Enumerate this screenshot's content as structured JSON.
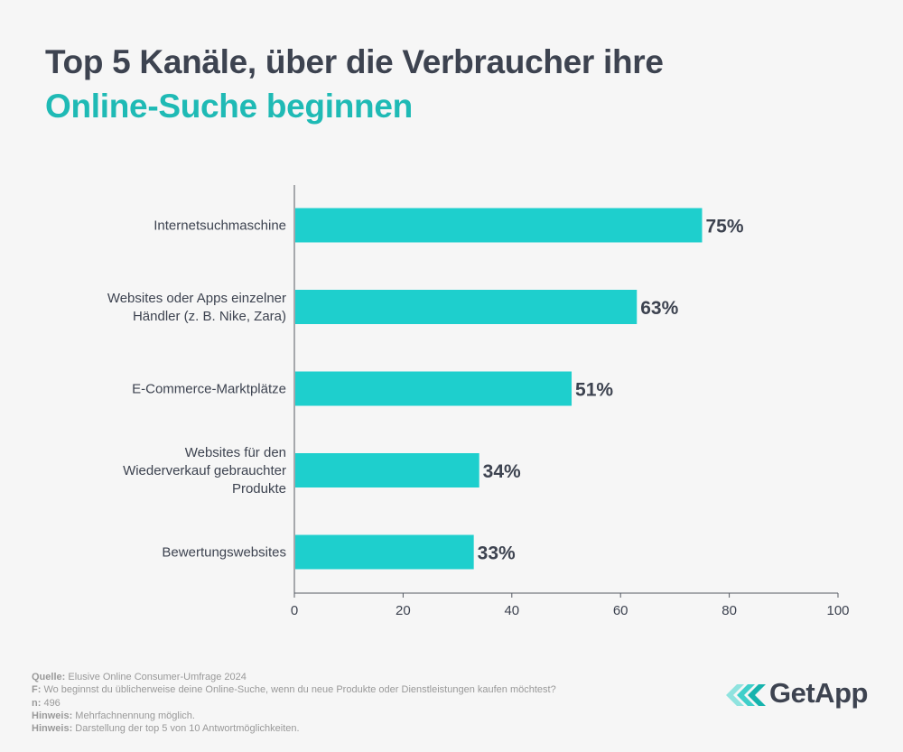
{
  "title": {
    "line1": "Top 5 Kanäle, über die Verbraucher ihre",
    "line2": "Online-Suche beginnen"
  },
  "colors": {
    "accent": "#1ecfcd",
    "title_dark": "#3d4350",
    "title_teal": "#1fbab5"
  },
  "chart_data": {
    "type": "bar",
    "orientation": "horizontal",
    "categories": [
      [
        "Internetsuchmaschine"
      ],
      [
        "Websites oder Apps einzelner",
        "Händler (z. B. Nike, Zara)"
      ],
      [
        "E-Commerce-Marktplätze"
      ],
      [
        "Websites für den",
        "Wiederverkauf gebrauchter",
        "Produkte"
      ],
      [
        "Bewertungswebsites"
      ]
    ],
    "values": [
      75,
      63,
      51,
      34,
      33
    ],
    "value_labels": [
      "75%",
      "63%",
      "51%",
      "34%",
      "33%"
    ],
    "xlim": [
      0,
      100
    ],
    "xticks": [
      0,
      20,
      40,
      60,
      80,
      100
    ],
    "grid": false,
    "color": "#1ecfcd"
  },
  "footer": [
    {
      "label": "Quelle:",
      "text": " Elusive Online Consumer-Umfrage 2024"
    },
    {
      "label": "F:",
      "text": " Wo beginnst du üblicherweise deine Online-Suche, wenn du neue Produkte oder Dienstleistungen kaufen möchtest?"
    },
    {
      "label": "n:",
      "text": " 496"
    },
    {
      "label": "Hinweis:",
      "text": " Mehrfachnennung möglich."
    },
    {
      "label": "Hinweis:",
      "text": " Darstellung der top 5 von 10 Antwortmöglichkeiten."
    }
  ],
  "logo": {
    "text": "GetApp",
    "icon": "getapp-chevrons-icon"
  }
}
